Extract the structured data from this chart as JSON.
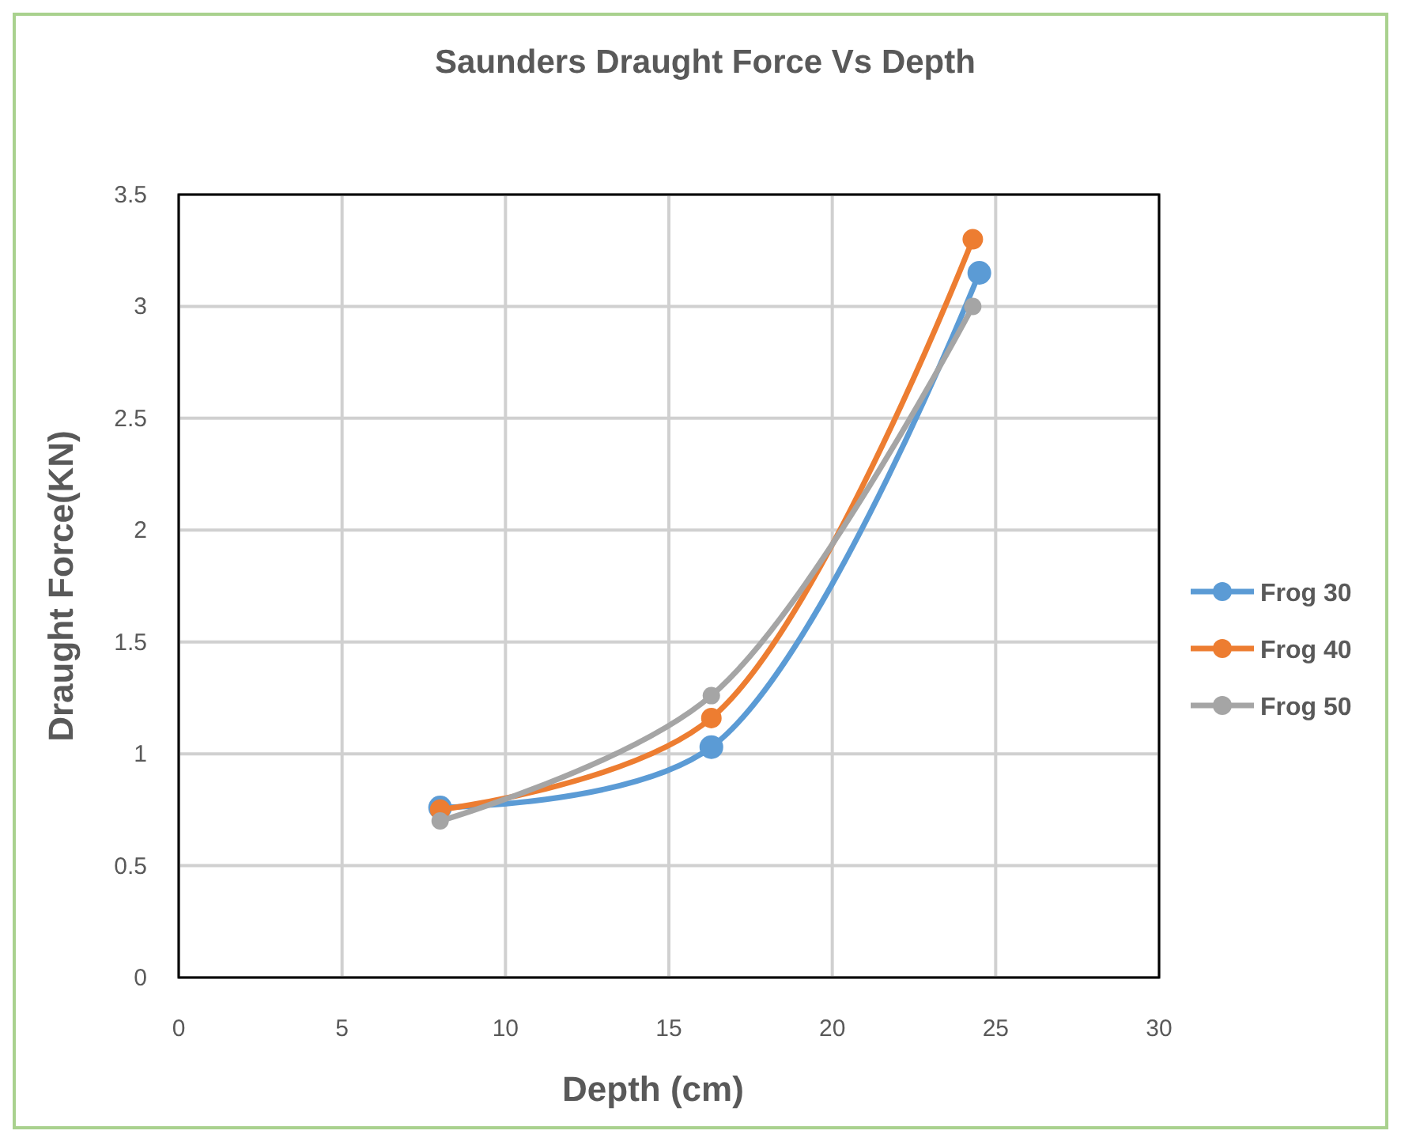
{
  "chart_data": {
    "type": "line",
    "title": "Saunders  Draught Force Vs Depth",
    "xlabel": "Depth (cm)",
    "ylabel": "Draught Force(KN)",
    "xlim": [
      0,
      30
    ],
    "xticks": [
      0,
      5,
      10,
      15,
      20,
      25,
      30
    ],
    "ylim": [
      0,
      3.5
    ],
    "yticks": [
      0,
      0.5,
      1,
      1.5,
      2,
      2.5,
      3,
      3.5
    ],
    "grid": true,
    "legend": "right",
    "marker": "circle",
    "line_style": "solid",
    "series": [
      {
        "name": "Frog 30",
        "color": "#5b9bd5",
        "x": [
          8,
          16.3,
          24.5
        ],
        "values": [
          0.76,
          1.03,
          3.15
        ]
      },
      {
        "name": "Frog 40",
        "color": "#ed7d31",
        "x": [
          8,
          16.3,
          24.3
        ],
        "values": [
          0.75,
          1.16,
          3.3
        ]
      },
      {
        "name": "Frog 50",
        "color": "#a5a5a5",
        "x": [
          8,
          16.3,
          24.3
        ],
        "values": [
          0.7,
          1.26,
          3.0
        ]
      }
    ]
  }
}
